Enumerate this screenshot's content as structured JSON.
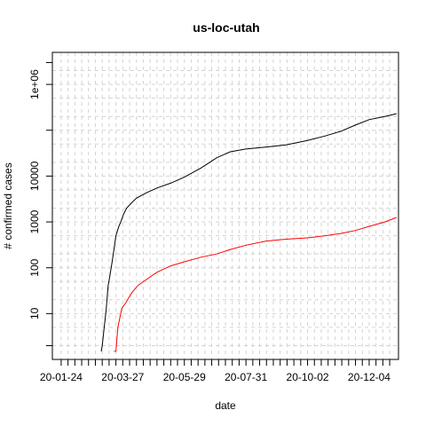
{
  "chart_data": {
    "type": "line",
    "title": "us-loc-utah",
    "xlabel": "date",
    "ylabel": "# confirmed cases",
    "y_scale": "log10",
    "ylim": [
      1,
      5000000
    ],
    "xlim": [
      "2020-01-15",
      "2021-01-03"
    ],
    "x_tick_labels": [
      "20-01-24",
      "20-03-27",
      "20-05-29",
      "20-07-31",
      "20-10-02",
      "20-12-04"
    ],
    "y_tick_labels": [
      "10",
      "100",
      "1000",
      "10000",
      "1e+06"
    ],
    "grid": true,
    "series": [
      {
        "color": "#000000",
        "x": [
          "2020-03-05",
          "2020-03-06",
          "2020-03-08",
          "2020-03-10",
          "2020-03-12",
          "2020-03-14",
          "2020-03-16",
          "2020-03-18",
          "2020-03-20",
          "2020-03-23",
          "2020-03-25",
          "2020-03-28",
          "2020-03-31",
          "2020-04-05",
          "2020-04-10",
          "2020-04-20",
          "2020-05-01",
          "2020-05-15",
          "2020-05-29",
          "2020-06-15",
          "2020-07-01",
          "2020-07-15",
          "2020-07-31",
          "2020-08-20",
          "2020-09-10",
          "2020-10-02",
          "2020-10-20",
          "2020-11-05",
          "2020-11-20",
          "2020-12-04",
          "2020-12-20",
          "2021-01-01"
        ],
        "y": [
          1.5,
          2,
          5,
          12,
          40,
          70,
          130,
          250,
          500,
          800,
          1000,
          1500,
          2000,
          2600,
          3300,
          4300,
          5500,
          7000,
          9500,
          15000,
          25000,
          34000,
          39000,
          43000,
          48000,
          60000,
          75000,
          95000,
          130000,
          170000,
          200000,
          230000
        ]
      },
      {
        "color": "#ff0000",
        "x": [
          "2020-03-18",
          "2020-03-20",
          "2020-03-22",
          "2020-03-24",
          "2020-03-26",
          "2020-03-28",
          "2020-03-30",
          "2020-04-02",
          "2020-04-06",
          "2020-04-12",
          "2020-04-20",
          "2020-05-01",
          "2020-05-15",
          "2020-05-29",
          "2020-06-15",
          "2020-07-01",
          "2020-07-15",
          "2020-07-31",
          "2020-08-20",
          "2020-09-10",
          "2020-10-02",
          "2020-10-20",
          "2020-11-05",
          "2020-11-20",
          "2020-12-04",
          "2020-12-20",
          "2021-01-01"
        ],
        "y": [
          1.5,
          1.5,
          5,
          8,
          13,
          15,
          17,
          22,
          30,
          42,
          55,
          80,
          110,
          135,
          170,
          200,
          250,
          310,
          380,
          420,
          450,
          500,
          560,
          650,
          800,
          1000,
          1250
        ]
      }
    ]
  }
}
